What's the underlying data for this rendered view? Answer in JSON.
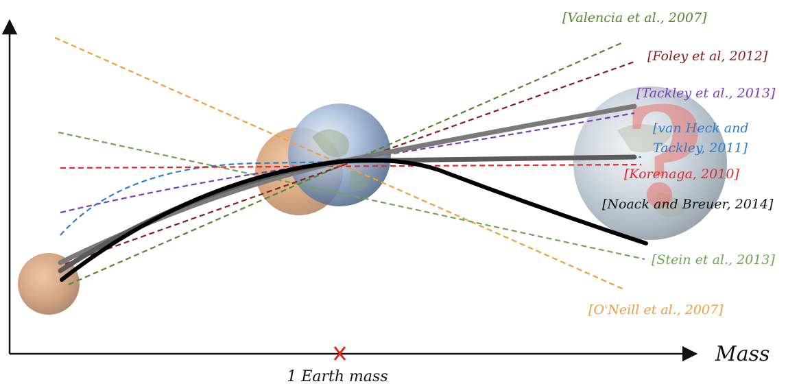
{
  "axis": {
    "x_label": "Mass",
    "marker_label": "1 Earth mass",
    "marker_symbol": "x",
    "marker_color": "#e0261b"
  },
  "curves": [
    {
      "key": "valencia",
      "label": "[Valencia et al., 2007]",
      "color": "#4f8a2c",
      "style": "dashed"
    },
    {
      "key": "foley",
      "label": "[Foley et al, 2012]",
      "color": "#8b1a1a",
      "style": "dashed"
    },
    {
      "key": "tackley",
      "label": "[Tackley et al., 2013]",
      "color": "#7b3ab6",
      "style": "dashed"
    },
    {
      "key": "vanheck",
      "label": "[van Heck and Tackley, 2011]",
      "label_lines": [
        "[van Heck and",
        "Tackley, 2011]"
      ],
      "color": "#2a7fc8",
      "style": "dashed"
    },
    {
      "key": "korenaga",
      "label": "[Korenaga, 2010]",
      "color": "#e8262a",
      "style": "dashed"
    },
    {
      "key": "noack",
      "label": "[Noack and Breuer, 2014]",
      "color": "#111111",
      "style": "solid"
    },
    {
      "key": "stein",
      "label": "[Stein et al., 2013]",
      "color": "#6aa84f",
      "style": "dashed"
    },
    {
      "key": "oneill",
      "label": "[O'Neill et al., 2007]",
      "color": "#f39c3c",
      "style": "dashed"
    }
  ],
  "planets": [
    {
      "key": "mars",
      "name": "mars-icon"
    },
    {
      "key": "venus",
      "name": "venus-icon"
    },
    {
      "key": "earth",
      "name": "earth-icon"
    },
    {
      "key": "super-earth",
      "name": "super-earth-icon",
      "mark": "?"
    }
  ]
}
